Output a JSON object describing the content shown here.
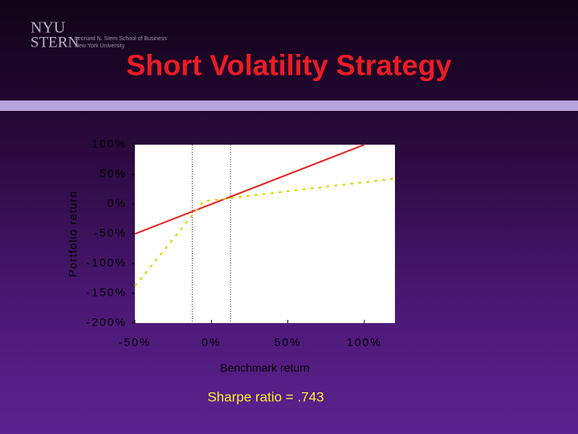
{
  "logo": {
    "mark": "NYU",
    "school": "STERN",
    "line1": "Leonard N. Stern School of Business",
    "line2": "New York University"
  },
  "chart_data": {
    "type": "line",
    "title": "Short Volatility Strategy",
    "x_label": "Benchmark return",
    "y_label": "Portfolio return",
    "annotation": "Sharpe ratio = .743",
    "xlim": [
      -50,
      120
    ],
    "ylim": [
      -200,
      100
    ],
    "xticks": [
      {
        "value": -50,
        "label": "-50%"
      },
      {
        "value": 0,
        "label": "0%"
      },
      {
        "value": 50,
        "label": "50%"
      },
      {
        "value": 100,
        "label": "100%"
      }
    ],
    "yticks": [
      {
        "value": 100,
        "label": "100%"
      },
      {
        "value": 50,
        "label": "50%"
      },
      {
        "value": 0,
        "label": "0%"
      },
      {
        "value": -50,
        "label": "-50%"
      },
      {
        "value": -100,
        "label": "-100%"
      },
      {
        "value": -150,
        "label": "-150%"
      },
      {
        "value": -200,
        "label": "-200%"
      }
    ],
    "vlines": [
      -12.5,
      12.5
    ],
    "series": [
      {
        "color": "#e8201e",
        "dash": false,
        "x": [
          -50,
          100
        ],
        "values": [
          -50,
          100
        ]
      },
      {
        "color": "#e6cf00",
        "dash": true,
        "x": [
          -50,
          -5,
          120
        ],
        "values": [
          -138,
          5,
          43
        ]
      }
    ]
  }
}
